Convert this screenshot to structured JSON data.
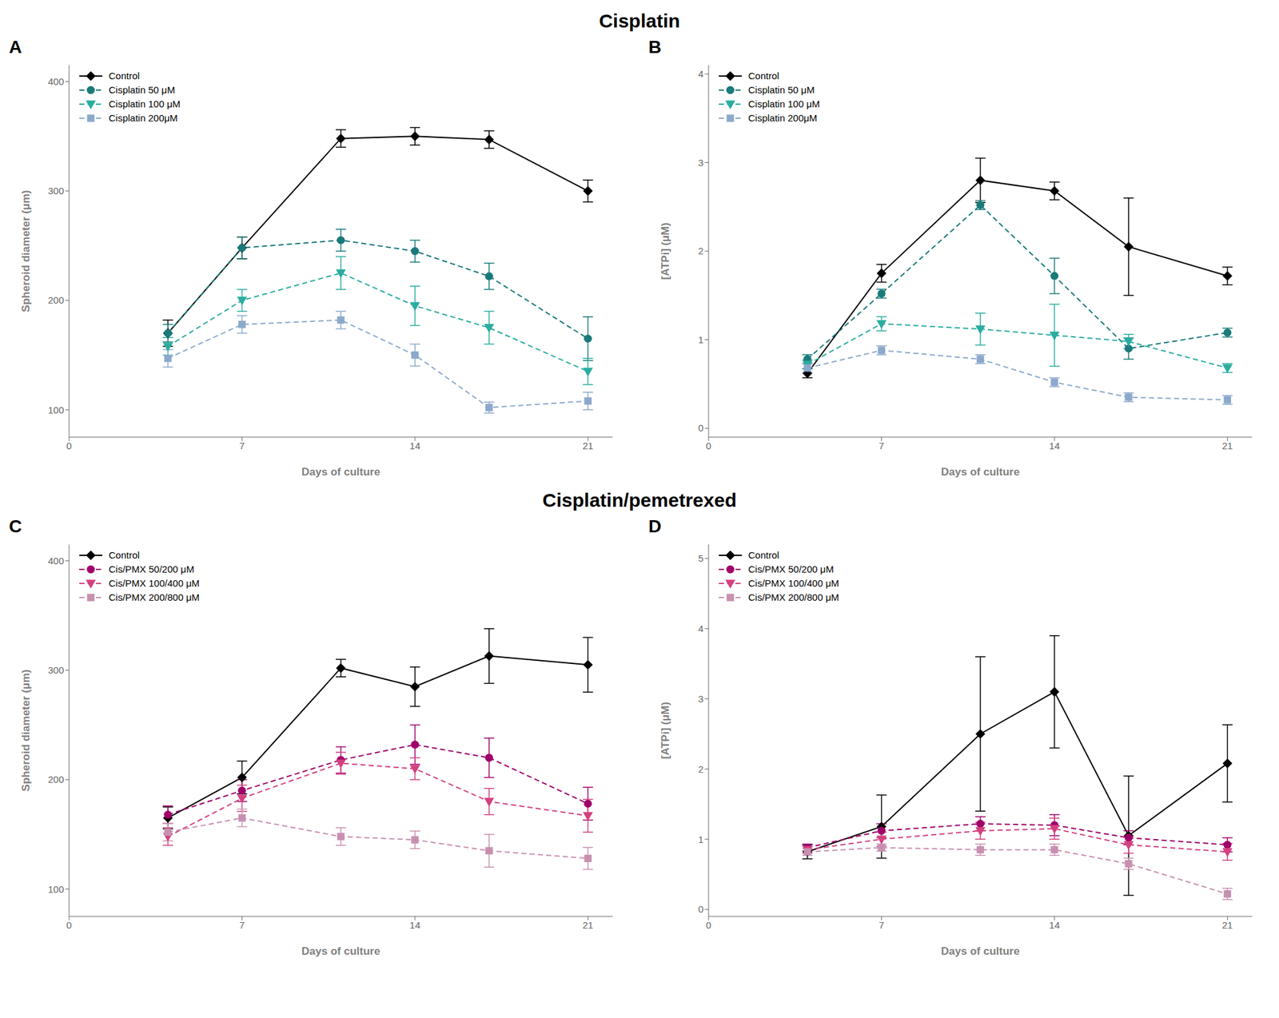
{
  "chart_data": [
    {
      "type": "line",
      "title": "A",
      "subtitle": "Cisplatin",
      "x_label": "Days of culture",
      "y_label": "Spheroid diameter (μm)",
      "x": [
        4,
        7,
        11,
        14,
        17,
        21
      ],
      "xlim": [
        0,
        22
      ],
      "xticks": [
        0,
        7,
        14,
        21
      ],
      "ylim": [
        75,
        415
      ],
      "yticks": [
        100,
        200,
        300,
        400
      ],
      "grid": false,
      "legend": "upper left",
      "series": [
        {
          "name": "Control",
          "color": "#000000",
          "marker": "diamond",
          "line_style": "solid",
          "values": [
            170,
            248,
            348,
            350,
            347,
            300
          ],
          "errors": [
            12,
            10,
            8,
            8,
            8,
            10
          ]
        },
        {
          "name": "Cisplatin 50 μM",
          "color": "#1a7a7a",
          "marker": "circle",
          "line_style": "dashed",
          "values": [
            170,
            248,
            255,
            245,
            222,
            165
          ],
          "errors": [
            8,
            10,
            10,
            10,
            12,
            20
          ]
        },
        {
          "name": "Cisplatin 100 μM",
          "color": "#2aada0",
          "marker": "triangle_down",
          "line_style": "dashed",
          "values": [
            158,
            200,
            225,
            195,
            175,
            135
          ],
          "errors": [
            8,
            10,
            15,
            18,
            15,
            12
          ]
        },
        {
          "name": "Cisplatin 200μM",
          "color": "#8ca9cc",
          "marker": "square",
          "line_style": "dashed",
          "values": [
            147,
            178,
            182,
            150,
            102,
            108
          ],
          "errors": [
            8,
            8,
            8,
            10,
            5,
            8
          ]
        }
      ]
    },
    {
      "type": "line",
      "title": "B",
      "x_label": "Days of culture",
      "y_label": "[ATPi] (μM)",
      "x": [
        4,
        7,
        11,
        14,
        17,
        21
      ],
      "xlim": [
        0,
        22
      ],
      "xticks": [
        0,
        7,
        14,
        21
      ],
      "ylim": [
        -0.1,
        4.1
      ],
      "yticks": [
        0,
        1,
        2,
        3,
        4
      ],
      "grid": false,
      "legend": "upper left",
      "series": [
        {
          "name": "Control",
          "color": "#000000",
          "marker": "diamond",
          "line_style": "solid",
          "values": [
            0.62,
            1.75,
            2.8,
            2.68,
            2.05,
            1.72
          ],
          "errors": [
            0.05,
            0.1,
            0.25,
            0.1,
            0.55,
            0.1
          ]
        },
        {
          "name": "Cisplatin 50 μM",
          "color": "#1a7a7a",
          "marker": "circle",
          "line_style": "dashed",
          "values": [
            0.78,
            1.52,
            2.52,
            1.72,
            0.9,
            1.08
          ],
          "errors": [
            0.05,
            0.05,
            0.05,
            0.2,
            0.12,
            0.05
          ]
        },
        {
          "name": "Cisplatin 100 μM",
          "color": "#2aada0",
          "marker": "triangle_down",
          "line_style": "dashed",
          "values": [
            0.72,
            1.18,
            1.12,
            1.05,
            0.98,
            0.68
          ],
          "errors": [
            0.05,
            0.08,
            0.18,
            0.35,
            0.08,
            0.05
          ]
        },
        {
          "name": "Cisplatin 200μM",
          "color": "#8ca9cc",
          "marker": "square",
          "line_style": "dashed",
          "values": [
            0.68,
            0.88,
            0.78,
            0.52,
            0.35,
            0.32
          ],
          "errors": [
            0.05,
            0.05,
            0.05,
            0.05,
            0.05,
            0.05
          ]
        }
      ]
    },
    {
      "type": "line",
      "title": "C",
      "subtitle": "Cisplatin/pemetrexed",
      "x_label": "Days of culture",
      "y_label": "Spheroid diameter (μm)",
      "x": [
        4,
        7,
        11,
        14,
        17,
        21
      ],
      "xlim": [
        0,
        22
      ],
      "xticks": [
        0,
        7,
        14,
        21
      ],
      "ylim": [
        75,
        415
      ],
      "yticks": [
        100,
        200,
        300,
        400
      ],
      "grid": false,
      "legend": "upper left",
      "series": [
        {
          "name": "Control",
          "color": "#000000",
          "marker": "diamond",
          "line_style": "solid",
          "values": [
            165,
            202,
            302,
            285,
            313,
            305
          ],
          "errors": [
            10,
            15,
            8,
            18,
            25,
            25
          ]
        },
        {
          "name": "Cis/PMX 50/200 μM",
          "color": "#a0006a",
          "marker": "circle",
          "line_style": "dashed",
          "values": [
            168,
            190,
            218,
            232,
            220,
            178
          ],
          "errors": [
            8,
            10,
            12,
            18,
            18,
            15
          ]
        },
        {
          "name": "Cis/PMX 100/400 μM",
          "color": "#d44080",
          "marker": "triangle_down",
          "line_style": "dashed",
          "values": [
            148,
            183,
            215,
            210,
            180,
            167
          ],
          "errors": [
            8,
            12,
            10,
            10,
            12,
            15
          ]
        },
        {
          "name": "Cis/PMX 200/800 μM",
          "color": "#c890b0",
          "marker": "square",
          "line_style": "dashed",
          "values": [
            152,
            165,
            148,
            145,
            135,
            128
          ],
          "errors": [
            8,
            8,
            8,
            8,
            15,
            10
          ]
        }
      ]
    },
    {
      "type": "line",
      "title": "D",
      "x_label": "Days of culture",
      "y_label": "[ATPi] (μM)",
      "x": [
        4,
        7,
        11,
        14,
        17,
        21
      ],
      "xlim": [
        0,
        22
      ],
      "xticks": [
        0,
        7,
        14,
        21
      ],
      "ylim": [
        -0.1,
        5.2
      ],
      "yticks": [
        0,
        1,
        2,
        3,
        4,
        5
      ],
      "grid": false,
      "legend": "upper left",
      "series": [
        {
          "name": "Control",
          "color": "#000000",
          "marker": "diamond",
          "line_style": "solid",
          "values": [
            0.82,
            1.18,
            2.5,
            3.1,
            1.05,
            2.08
          ],
          "errors": [
            0.1,
            0.45,
            1.1,
            0.8,
            0.85,
            0.55
          ]
        },
        {
          "name": "Cis/PMX 50/200 μM",
          "color": "#a0006a",
          "marker": "circle",
          "line_style": "dashed",
          "values": [
            0.88,
            1.12,
            1.22,
            1.2,
            1.02,
            0.92
          ],
          "errors": [
            0.05,
            0.1,
            0.1,
            0.15,
            0.1,
            0.1
          ]
        },
        {
          "name": "Cis/PMX 100/400 μM",
          "color": "#d44080",
          "marker": "triangle_down",
          "line_style": "dashed",
          "values": [
            0.85,
            1.0,
            1.12,
            1.15,
            0.92,
            0.82
          ],
          "errors": [
            0.05,
            0.1,
            0.12,
            0.15,
            0.12,
            0.12
          ]
        },
        {
          "name": "Cis/PMX 200/800 μM",
          "color": "#c890b0",
          "marker": "square",
          "line_style": "dashed",
          "values": [
            0.82,
            0.88,
            0.85,
            0.85,
            0.65,
            0.22
          ],
          "errors": [
            0.05,
            0.05,
            0.08,
            0.08,
            0.08,
            0.08
          ]
        }
      ]
    }
  ]
}
